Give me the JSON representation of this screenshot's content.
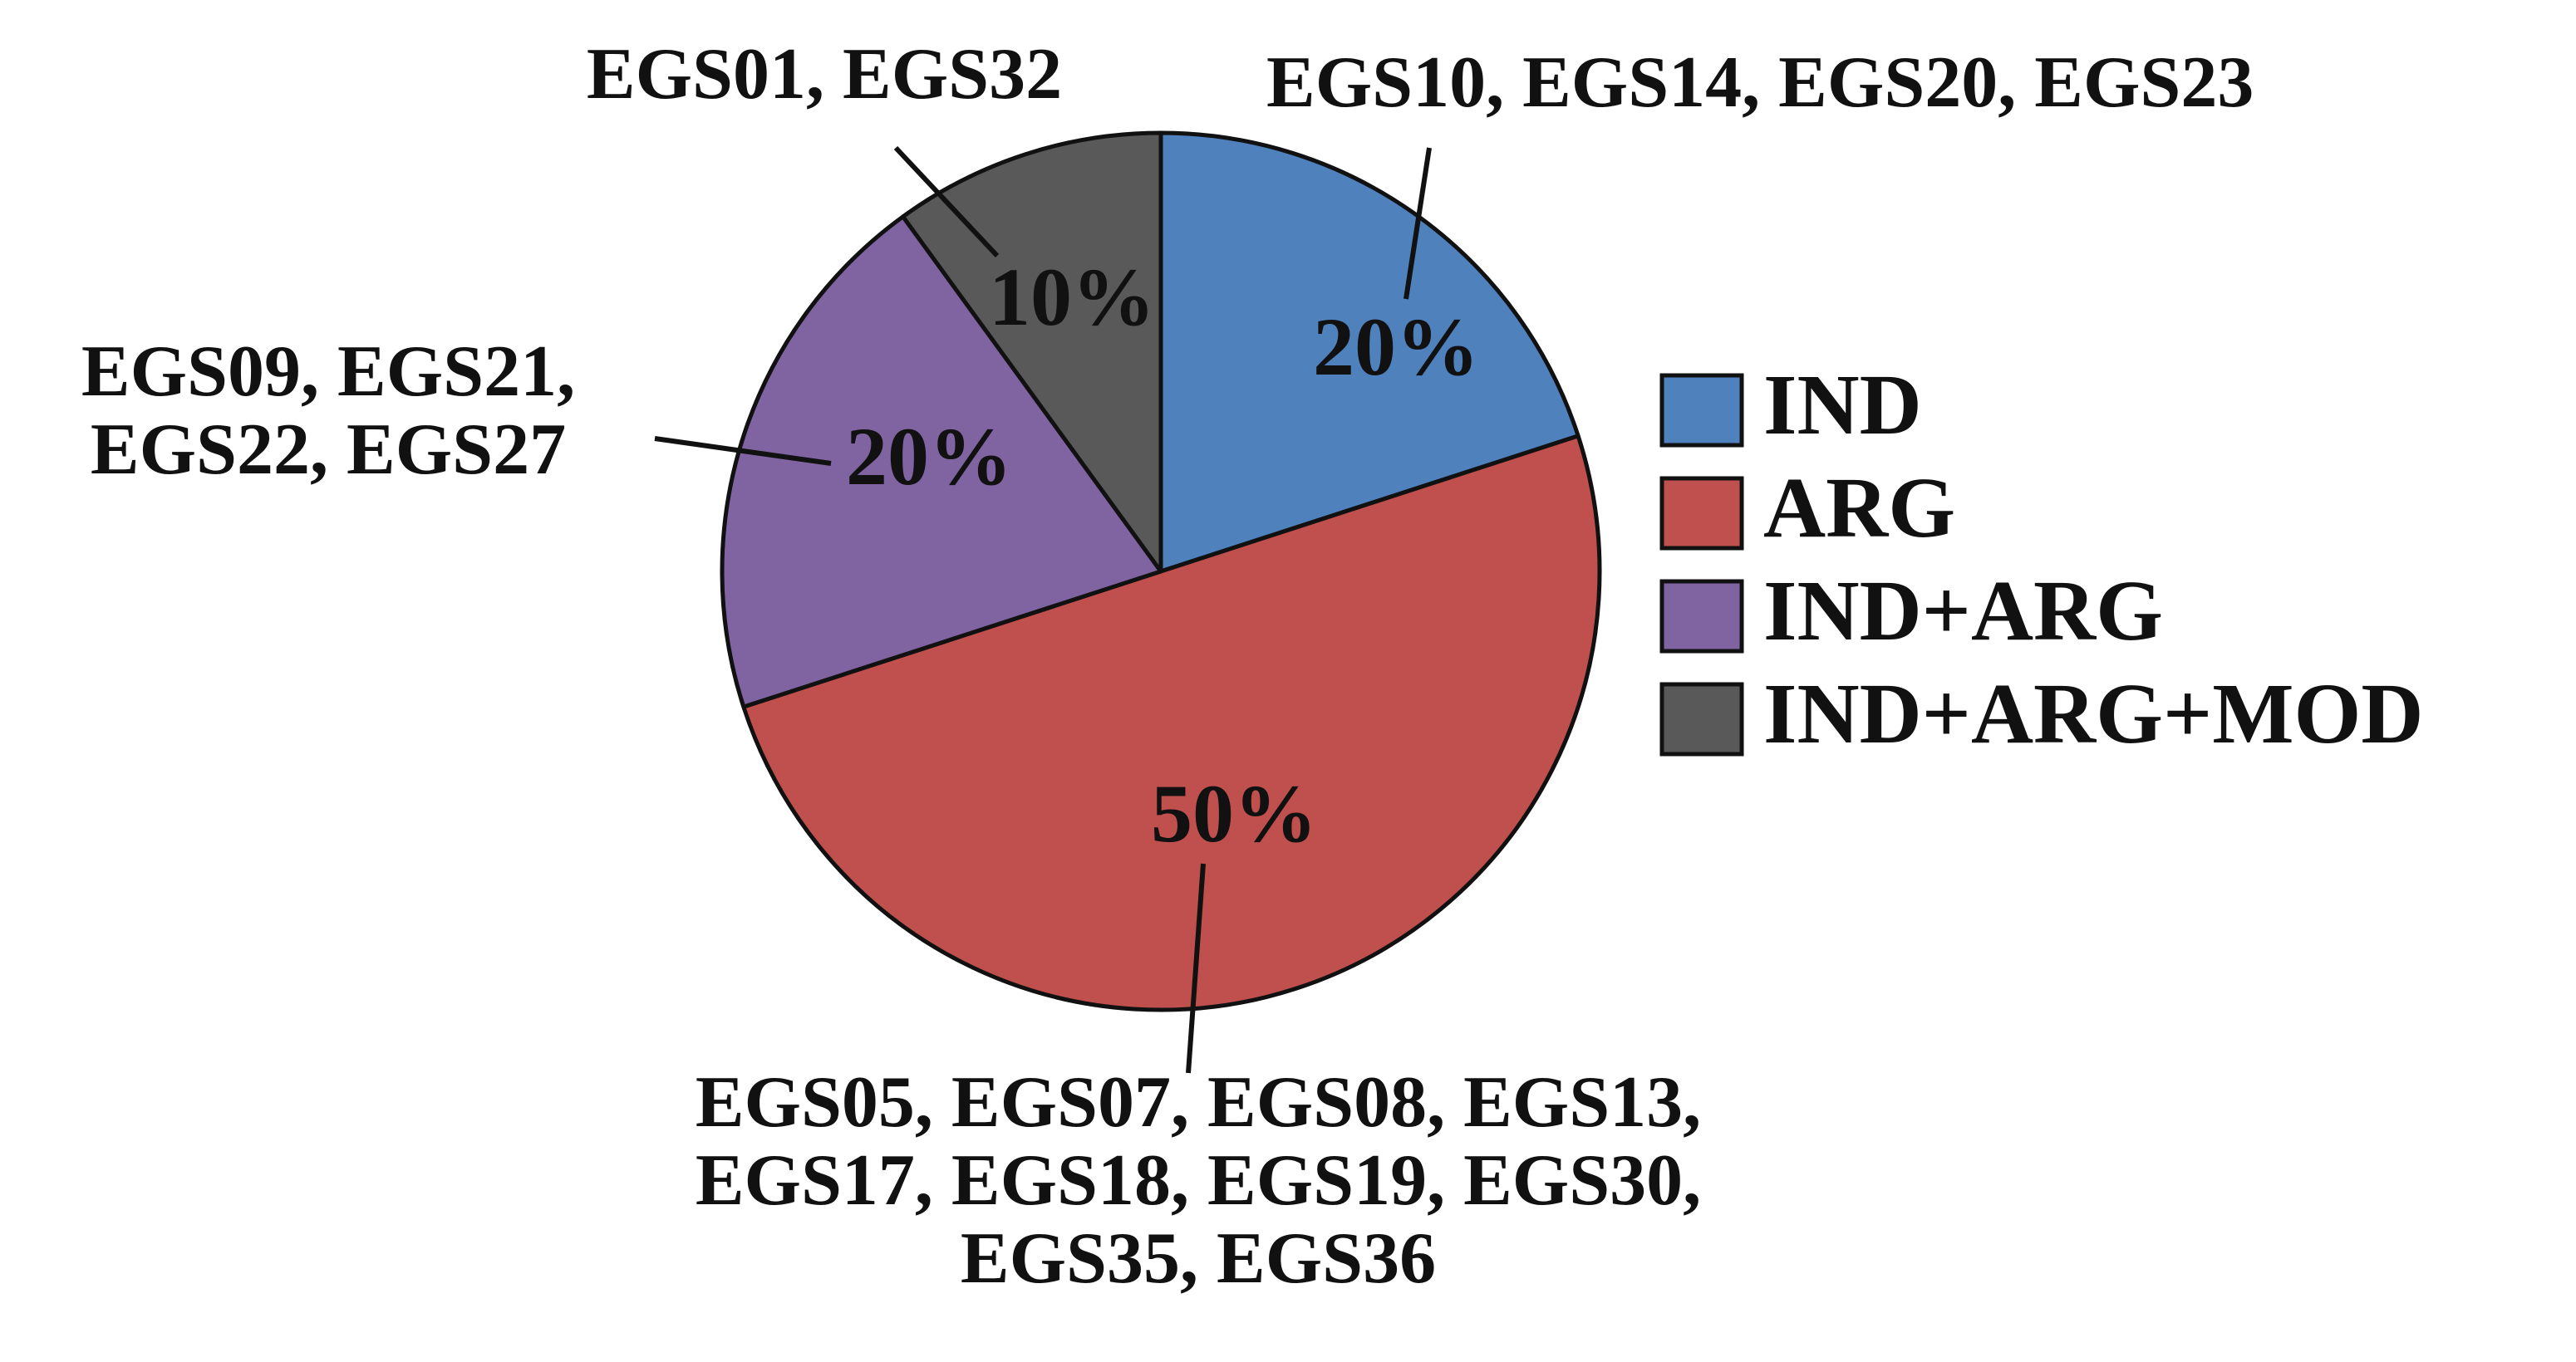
{
  "chart_data": {
    "type": "pie",
    "title": "",
    "slices": [
      {
        "label": "IND",
        "value": 20,
        "percent_label": "20%",
        "color": "#4f81bd",
        "callout": [
          "EGS10, EGS14, EGS20, EGS23"
        ]
      },
      {
        "label": "ARG",
        "value": 50,
        "percent_label": "50%",
        "color": "#c0504d",
        "callout": [
          "EGS05, EGS07, EGS08, EGS13,",
          "EGS17, EGS18, EGS19, EGS30,",
          "EGS35, EGS36"
        ]
      },
      {
        "label": "IND+ARG",
        "value": 20,
        "percent_label": "20%",
        "color": "#8064a2",
        "callout": [
          "EGS09, EGS21,",
          "EGS22, EGS27"
        ]
      },
      {
        "label": "IND+ARG+MOD",
        "value": 10,
        "percent_label": "10%",
        "color": "#595959",
        "callout": [
          "EGS01, EGS32"
        ]
      }
    ],
    "legend": {
      "position": "right",
      "entries": [
        "IND",
        "ARG",
        "IND+ARG",
        "IND+ARG+MOD"
      ]
    }
  }
}
